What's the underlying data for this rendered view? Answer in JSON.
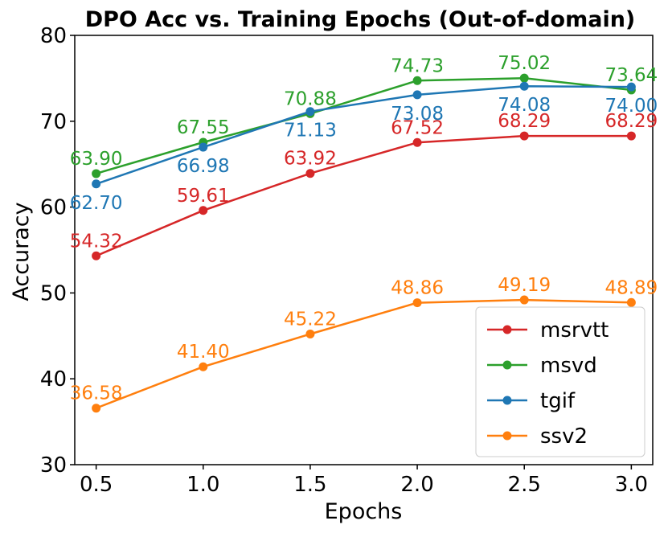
{
  "chart_data": {
    "type": "line",
    "title": "DPO Acc vs. Training Epochs (Out-of-domain)",
    "xlabel": "Epochs",
    "ylabel": "Accuracy",
    "x": [
      0.5,
      1.0,
      1.5,
      2.0,
      2.5,
      3.0
    ],
    "x_tick_labels": [
      "0.5",
      "1.0",
      "1.5",
      "2.0",
      "2.5",
      "3.0"
    ],
    "xlim": [
      0.4,
      3.1
    ],
    "ylim": [
      30,
      80
    ],
    "y_ticks": [
      30,
      40,
      50,
      60,
      70,
      80
    ],
    "y_tick_labels": [
      "30",
      "40",
      "50",
      "60",
      "70",
      "80"
    ],
    "grid": false,
    "legend_position": "lower-right",
    "series": [
      {
        "name": "msrvtt",
        "color": "#d62728",
        "values": [
          54.32,
          59.61,
          63.92,
          67.52,
          68.29,
          68.29
        ],
        "labels": [
          "54.32",
          "59.61",
          "63.92",
          "67.52",
          "68.29",
          "68.29"
        ],
        "label_placement": "above"
      },
      {
        "name": "msvd",
        "color": "#2ca02c",
        "values": [
          63.9,
          67.55,
          70.88,
          74.73,
          75.02,
          73.64
        ],
        "labels": [
          "63.90",
          "67.55",
          "70.88",
          "74.73",
          "75.02",
          "73.64"
        ],
        "label_placement": "above"
      },
      {
        "name": "tgif",
        "color": "#1f77b4",
        "values": [
          62.7,
          66.98,
          71.13,
          73.08,
          74.08,
          74.0
        ],
        "labels": [
          "62.70",
          "66.98",
          "71.13",
          "73.08",
          "74.08",
          "74.00"
        ],
        "label_placement": "below"
      },
      {
        "name": "ssv2",
        "color": "#ff7f0e",
        "values": [
          36.58,
          41.4,
          45.22,
          48.86,
          49.19,
          48.89
        ],
        "labels": [
          "36.58",
          "41.40",
          "45.22",
          "48.86",
          "49.19",
          "48.89"
        ],
        "label_placement": "above"
      }
    ]
  }
}
